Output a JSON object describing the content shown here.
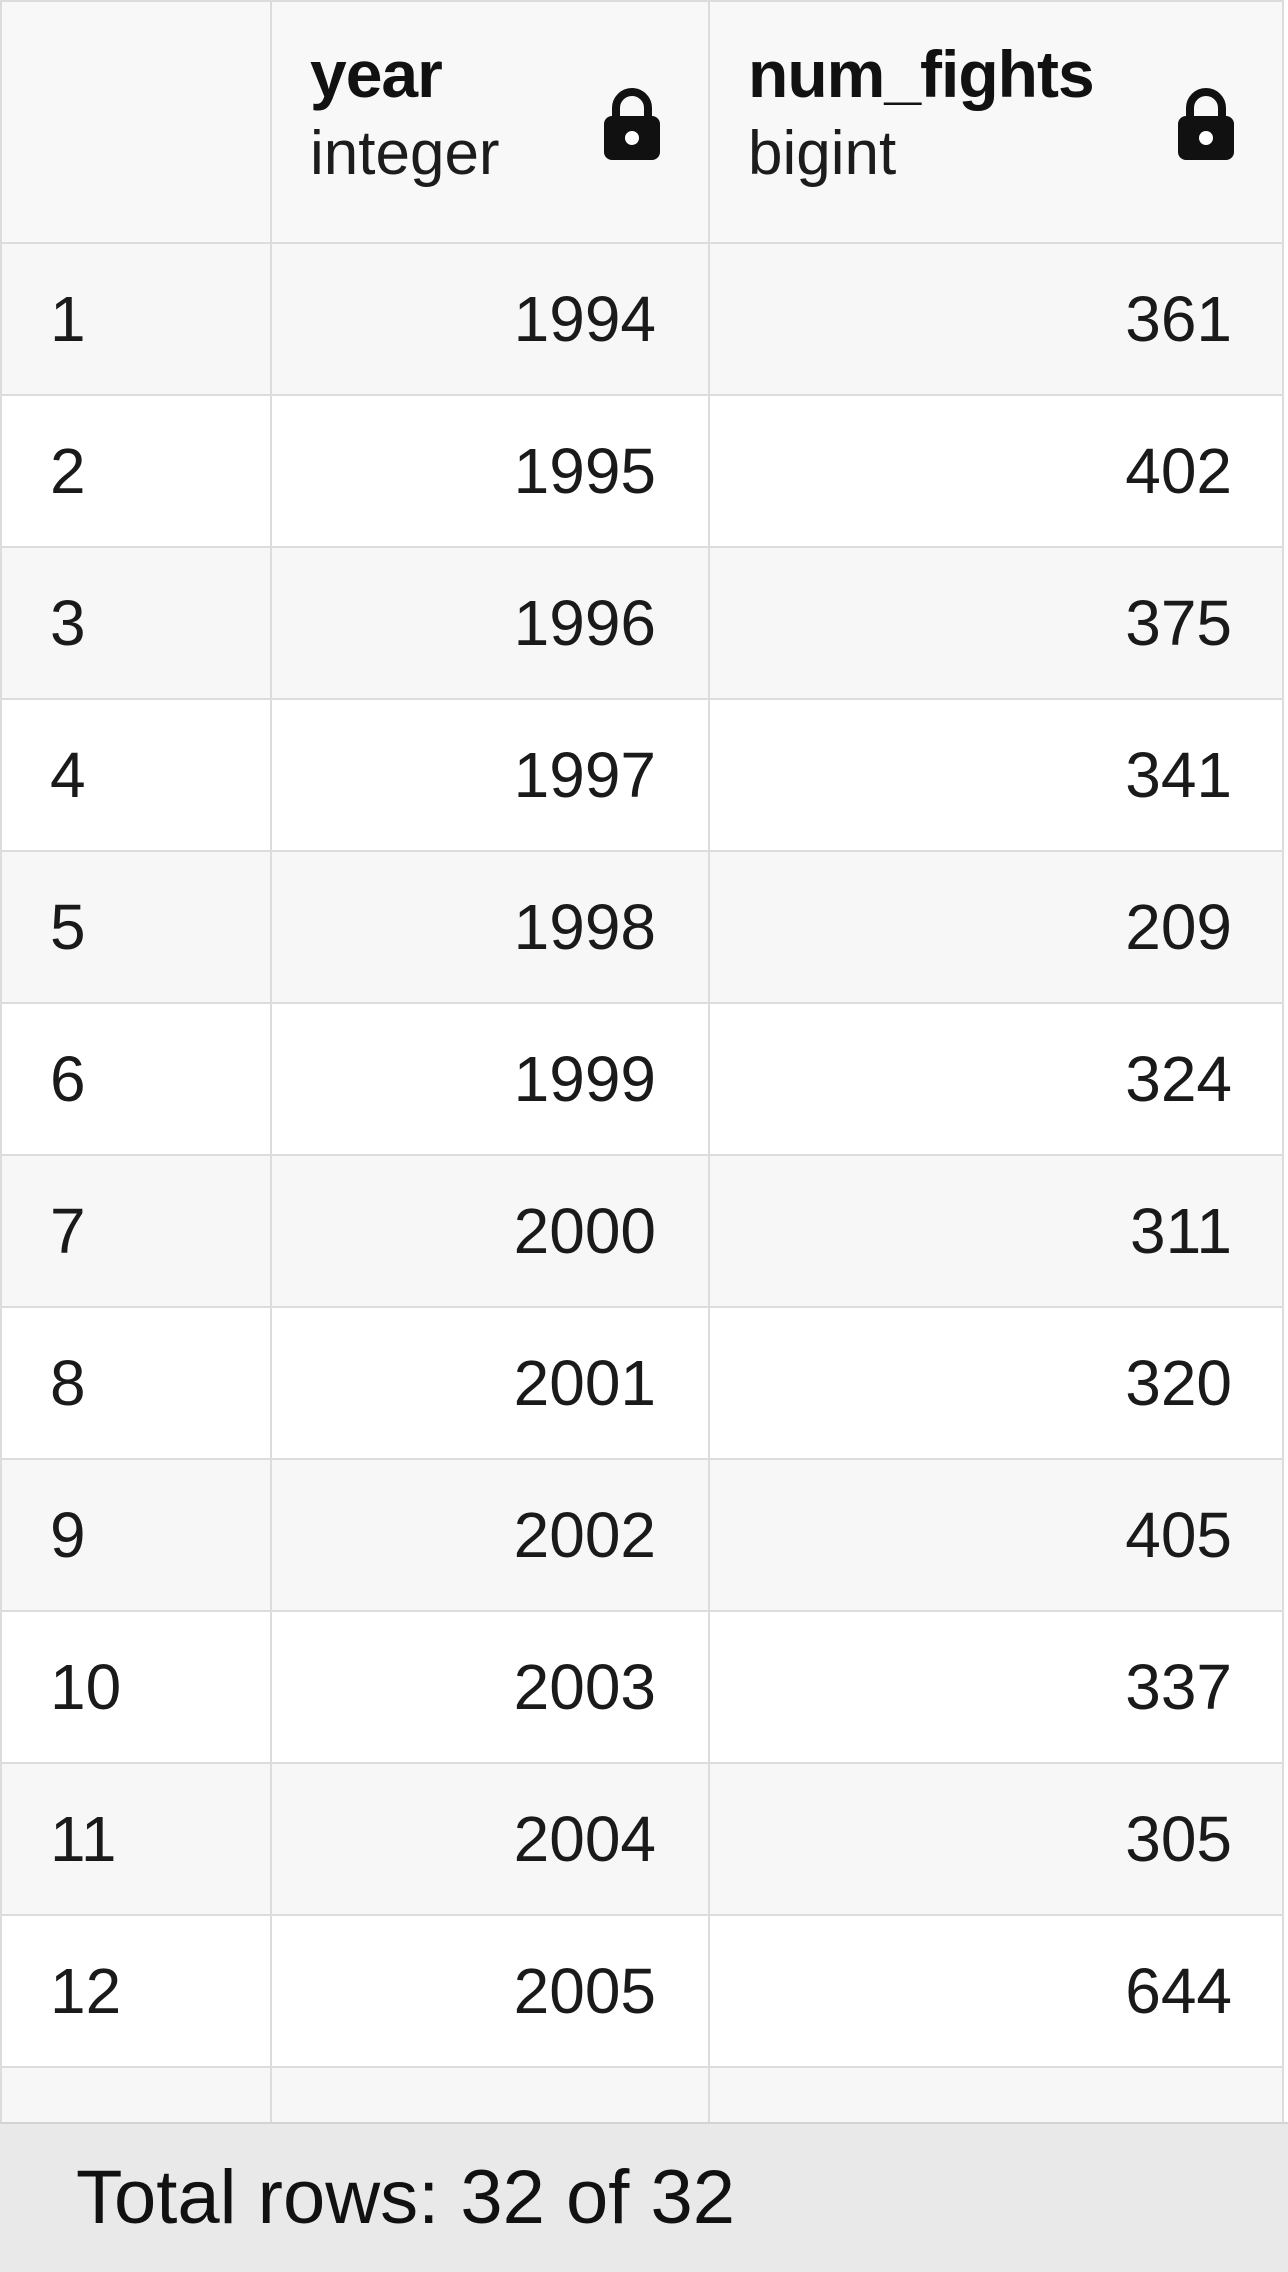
{
  "columns": [
    {
      "name": "year",
      "type": "integer",
      "icon": "lock-icon"
    },
    {
      "name": "num_fights",
      "type": "bigint",
      "icon": "lock-icon"
    }
  ],
  "rows": [
    {
      "num": "1",
      "year": "1994",
      "num_fights": "361"
    },
    {
      "num": "2",
      "year": "1995",
      "num_fights": "402"
    },
    {
      "num": "3",
      "year": "1996",
      "num_fights": "375"
    },
    {
      "num": "4",
      "year": "1997",
      "num_fights": "341"
    },
    {
      "num": "5",
      "year": "1998",
      "num_fights": "209"
    },
    {
      "num": "6",
      "year": "1999",
      "num_fights": "324"
    },
    {
      "num": "7",
      "year": "2000",
      "num_fights": "311"
    },
    {
      "num": "8",
      "year": "2001",
      "num_fights": "320"
    },
    {
      "num": "9",
      "year": "2002",
      "num_fights": "405"
    },
    {
      "num": "10",
      "year": "2003",
      "num_fights": "337"
    },
    {
      "num": "11",
      "year": "2004",
      "num_fights": "305"
    },
    {
      "num": "12",
      "year": "2005",
      "num_fights": "644"
    }
  ],
  "footer": {
    "status_text": "Total rows: 32 of 32"
  }
}
